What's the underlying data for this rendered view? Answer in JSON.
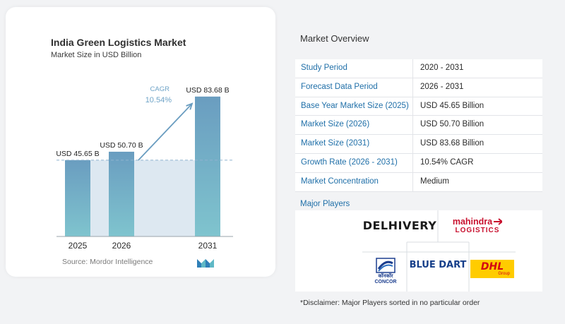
{
  "chart_data": {
    "type": "bar",
    "title": "India Green Logistics Market",
    "subtitle": "Market Size in USD Billion",
    "categories": [
      "2025",
      "2026",
      "2031"
    ],
    "values": [
      45.65,
      50.7,
      83.68
    ],
    "data_labels": [
      "USD 45.65 B",
      "USD 50.70 B",
      "USD 83.68 B"
    ],
    "cagr_label": "CAGR",
    "cagr_value": "10.54%",
    "ylim": [
      0,
      95
    ],
    "colors": {
      "bar": "#6a9dc0",
      "bar_bottom": "#7fc4ce",
      "shade": "#dde8f1",
      "arrow": "#6a9dc0",
      "cagr": "#6ea3c7"
    }
  },
  "source": "Source:  Mordor Intelligence",
  "overview": {
    "title": "Market Overview",
    "rows": [
      {
        "label": "Study Period",
        "value": "2020 - 2031"
      },
      {
        "label": "Forecast Data Period",
        "value": "2026 - 2031"
      },
      {
        "label": "Base Year Market Size (2025)",
        "value": "USD 45.65 Billion"
      },
      {
        "label": "Market Size (2026)",
        "value": "USD 50.70 Billion"
      },
      {
        "label": "Market Size (2031)",
        "value": "USD 83.68 Billion"
      },
      {
        "label": "Growth Rate (2026 - 2031)",
        "value": "10.54% CAGR"
      },
      {
        "label": "Market Concentration",
        "value": "Medium"
      }
    ]
  },
  "major_players": {
    "title": "Major Players",
    "logos": {
      "delhivery": "DELHIVERY",
      "mahindra_top": "mahindra",
      "mahindra_bottom": "LOGISTICS",
      "concor_hindi": "कॉनकॉर",
      "concor": "CONCOR",
      "bluedart": "BLUE DART",
      "dhl": "DHL",
      "dhl_group": "Group"
    }
  },
  "disclaimer": "*Disclaimer: Major Players sorted in no particular order"
}
